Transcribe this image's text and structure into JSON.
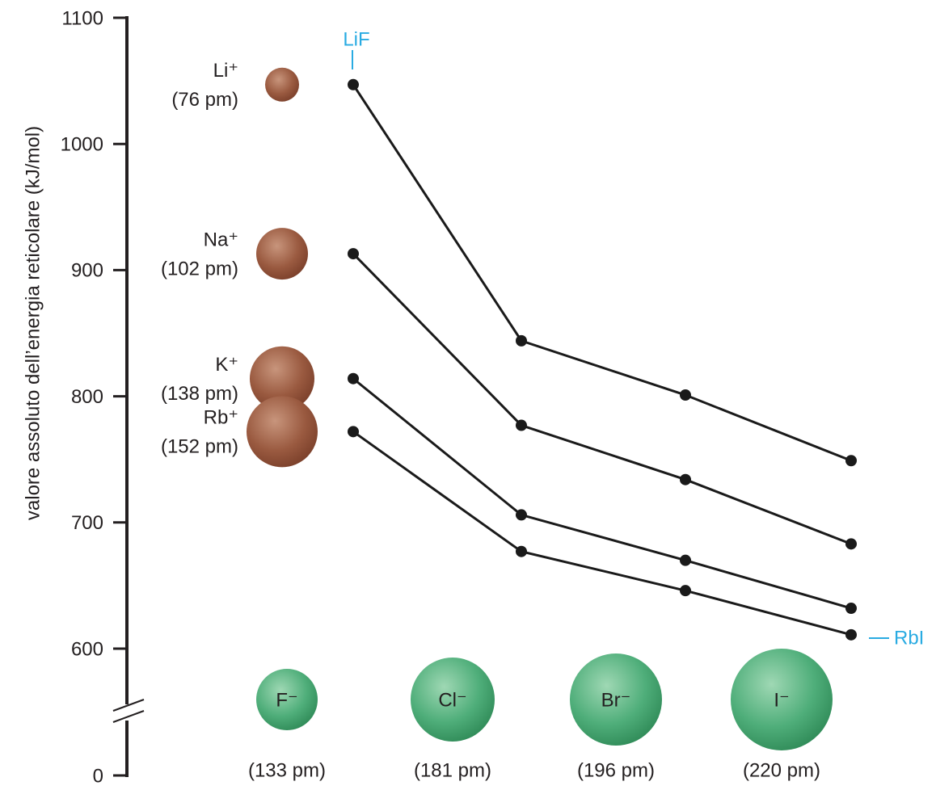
{
  "chart_data": {
    "type": "line",
    "y_label": "valore assoluto dell’energia reticolare (kJ/mol)",
    "categories": [
      "F⁻",
      "Cl⁻",
      "Br⁻",
      "I⁻"
    ],
    "category_radii": [
      "(133 pm)",
      "(181 pm)",
      "(196 pm)",
      "(220 pm)"
    ],
    "series": [
      {
        "name": "Li⁺",
        "radius": "(76 pm)",
        "color": "#1a1a1a",
        "values": [
          1047,
          844,
          801,
          749
        ]
      },
      {
        "name": "Na⁺",
        "radius": "(102 pm)",
        "color": "#1a1a1a",
        "values": [
          913,
          777,
          734,
          683
        ]
      },
      {
        "name": "K⁺",
        "radius": "(138 pm)",
        "color": "#1a1a1a",
        "values": [
          814,
          706,
          670,
          632
        ]
      },
      {
        "name": "Rb⁺",
        "radius": "(152 pm)",
        "color": "#1a1a1a",
        "values": [
          772,
          677,
          646,
          611
        ]
      }
    ],
    "ylim": [
      600,
      1100
    ],
    "yticks": [
      0,
      600,
      700,
      800,
      900,
      1000,
      1100
    ],
    "axis_break": true,
    "annotations": [
      "LiF",
      "RbI"
    ]
  }
}
